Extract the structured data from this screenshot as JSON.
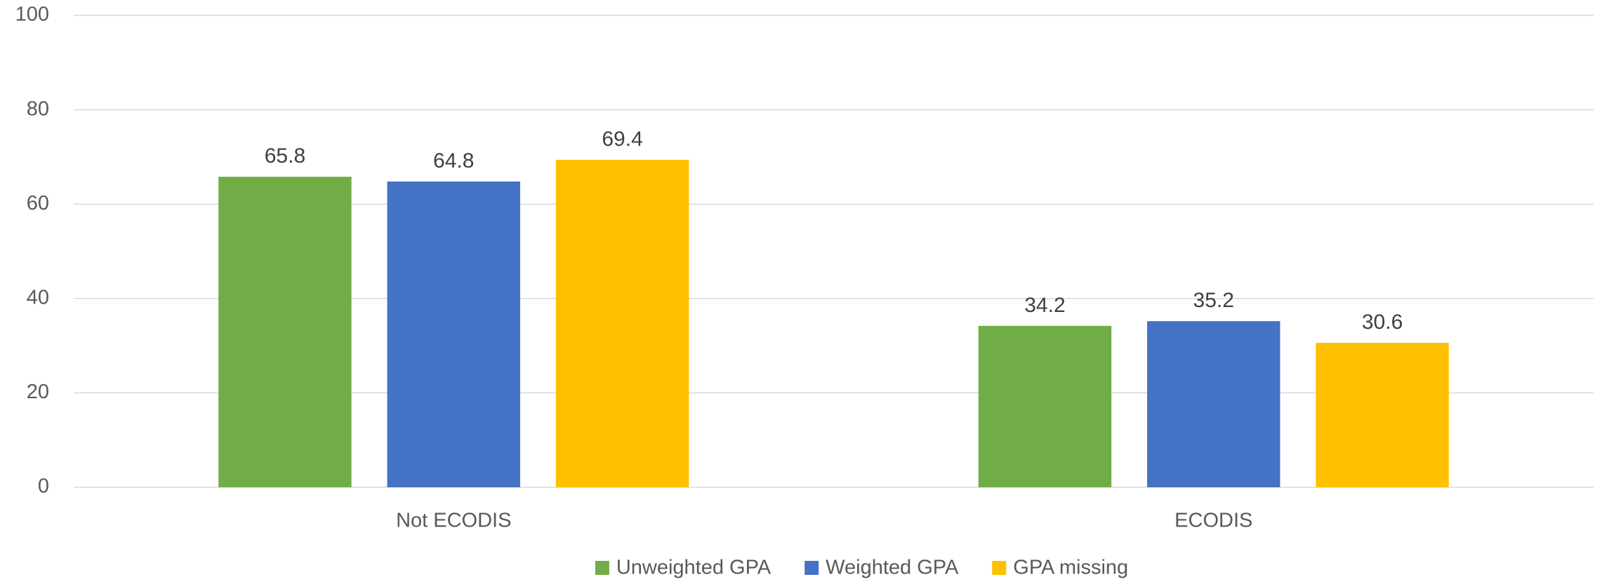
{
  "chart_data": {
    "type": "bar",
    "categories": [
      "Not ECODIS",
      "ECODIS"
    ],
    "series": [
      {
        "name": "Unweighted GPA",
        "color": "#70ad47",
        "values": [
          65.8,
          34.2
        ]
      },
      {
        "name": "Weighted GPA",
        "color": "#4472c4",
        "values": [
          64.8,
          35.2
        ]
      },
      {
        "name": "GPA missing",
        "color": "#ffc000",
        "values": [
          69.4,
          30.6
        ]
      }
    ],
    "ylim": [
      0,
      100
    ],
    "yticks": [
      0,
      20,
      40,
      60,
      80,
      100
    ],
    "grid": true,
    "legend": "bottom",
    "data_labels": true
  }
}
